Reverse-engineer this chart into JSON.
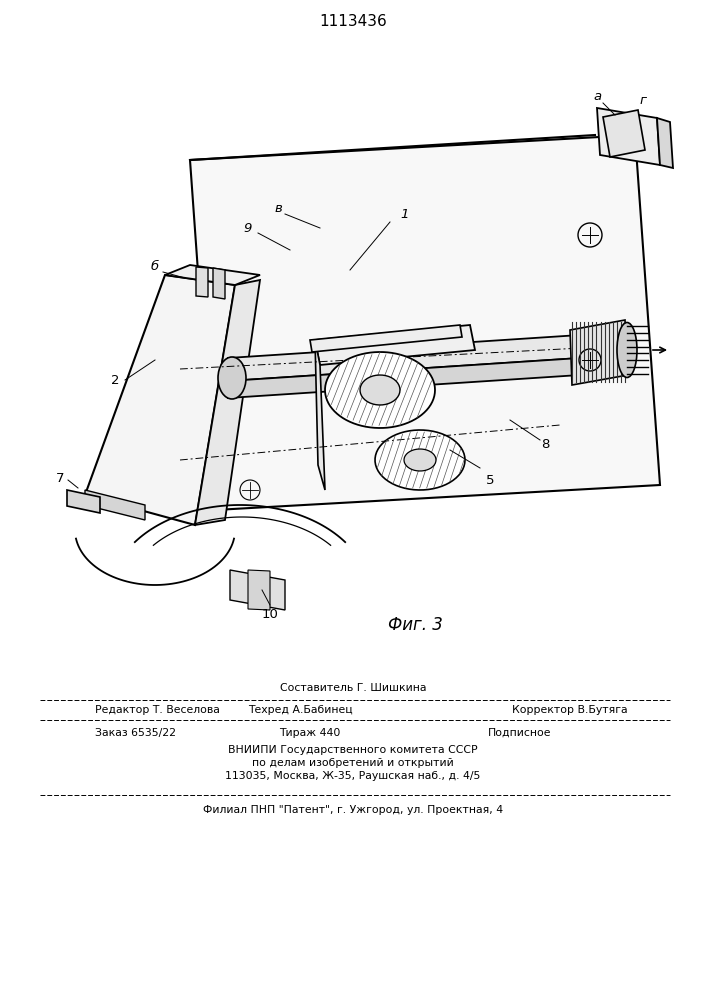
{
  "patent_number": "1113436",
  "fig_caption": "Фиг. 3",
  "bg_color": "#ffffff",
  "line_color": "#000000",
  "footer": {
    "line1_center": "Составитель Г. Шишкина",
    "line2_left": "Редактор Т. Веселова",
    "line2_center": "Техред А.Бабинец",
    "line2_right": "Корректор В.Бутяга",
    "line3_left": "Заказ 6535/22",
    "line3_center": "Тираж 440",
    "line3_right": "Подписное",
    "line4": "ВНИИПИ Государственного комитета СССР",
    "line5": "по делам изобретений и открытий",
    "line6": "113035, Москва, Ж-35, Раушская наб., д. 4/5",
    "line7": "Филиал ПНП \"Патент\", г. Ужгород, ул. Проектная, 4"
  }
}
